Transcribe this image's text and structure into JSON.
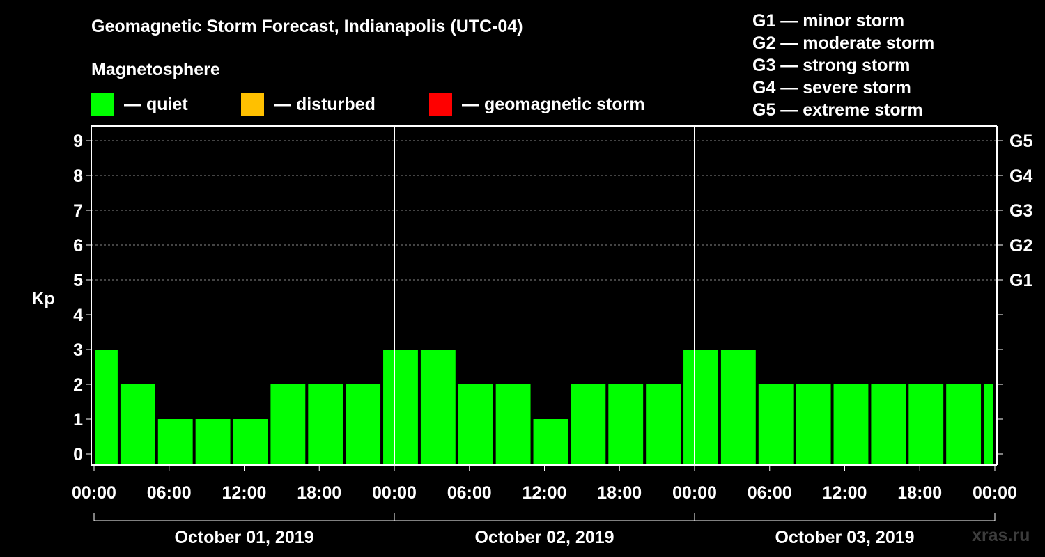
{
  "title": "Geomagnetic Storm Forecast, Indianapolis (UTC-04)",
  "magnetosphere": {
    "heading": "Magnetosphere",
    "legend": [
      {
        "label": "— quiet",
        "color": "#00ff00"
      },
      {
        "label": "— disturbed",
        "color": "#ffc000"
      },
      {
        "label": "— geomagnetic storm",
        "color": "#ff0000"
      }
    ]
  },
  "storm_scale": [
    "G1 — minor storm",
    "G2 — moderate storm",
    "G3 — strong storm",
    "G4 — severe storm",
    "G5 — extreme storm"
  ],
  "watermark": "xras.ru",
  "chart_data": {
    "type": "bar",
    "title": "Geomagnetic Storm Forecast, Indianapolis (UTC-04)",
    "ylabel": "Kp",
    "xlabel": "",
    "ylim": [
      0,
      9
    ],
    "y_ticks": [
      0,
      1,
      2,
      3,
      4,
      5,
      6,
      7,
      8,
      9
    ],
    "x_range_hours": [
      0,
      72
    ],
    "x_tick_hours": [
      0,
      6,
      12,
      18,
      24,
      30,
      36,
      42,
      48,
      54,
      60,
      66,
      72
    ],
    "x_tick_labels": [
      "00:00",
      "06:00",
      "12:00",
      "18:00",
      "00:00",
      "06:00",
      "12:00",
      "18:00",
      "00:00",
      "06:00",
      "12:00",
      "18:00",
      "00:00"
    ],
    "day_boundaries_hours": [
      24,
      48
    ],
    "days": [
      {
        "label": "October 01, 2019",
        "start_hour": 0,
        "end_hour": 24
      },
      {
        "label": "October 02, 2019",
        "start_hour": 24,
        "end_hour": 48
      },
      {
        "label": "October 03, 2019",
        "start_hour": 48,
        "end_hour": 72
      }
    ],
    "right_axis": [
      {
        "kp": 5,
        "label": "G1"
      },
      {
        "kp": 6,
        "label": "G2"
      },
      {
        "kp": 7,
        "label": "G3"
      },
      {
        "kp": 8,
        "label": "G4"
      },
      {
        "kp": 9,
        "label": "G5"
      }
    ],
    "colors": {
      "quiet": "#00ff00",
      "disturbed": "#ffc000",
      "storm": "#ff0000",
      "grid": "#888888",
      "axis": "#ffffff"
    },
    "bars": [
      {
        "start_hour": 0,
        "end_hour": 2,
        "kp": 3,
        "status": "quiet"
      },
      {
        "start_hour": 2,
        "end_hour": 5,
        "kp": 2,
        "status": "quiet"
      },
      {
        "start_hour": 5,
        "end_hour": 8,
        "kp": 1,
        "status": "quiet"
      },
      {
        "start_hour": 8,
        "end_hour": 11,
        "kp": 1,
        "status": "quiet"
      },
      {
        "start_hour": 11,
        "end_hour": 14,
        "kp": 1,
        "status": "quiet"
      },
      {
        "start_hour": 14,
        "end_hour": 17,
        "kp": 2,
        "status": "quiet"
      },
      {
        "start_hour": 17,
        "end_hour": 20,
        "kp": 2,
        "status": "quiet"
      },
      {
        "start_hour": 20,
        "end_hour": 23,
        "kp": 2,
        "status": "quiet"
      },
      {
        "start_hour": 23,
        "end_hour": 26,
        "kp": 3,
        "status": "quiet"
      },
      {
        "start_hour": 26,
        "end_hour": 29,
        "kp": 3,
        "status": "quiet"
      },
      {
        "start_hour": 29,
        "end_hour": 32,
        "kp": 2,
        "status": "quiet"
      },
      {
        "start_hour": 32,
        "end_hour": 35,
        "kp": 2,
        "status": "quiet"
      },
      {
        "start_hour": 35,
        "end_hour": 38,
        "kp": 1,
        "status": "quiet"
      },
      {
        "start_hour": 38,
        "end_hour": 41,
        "kp": 2,
        "status": "quiet"
      },
      {
        "start_hour": 41,
        "end_hour": 44,
        "kp": 2,
        "status": "quiet"
      },
      {
        "start_hour": 44,
        "end_hour": 47,
        "kp": 2,
        "status": "quiet"
      },
      {
        "start_hour": 47,
        "end_hour": 50,
        "kp": 3,
        "status": "quiet"
      },
      {
        "start_hour": 50,
        "end_hour": 53,
        "kp": 3,
        "status": "quiet"
      },
      {
        "start_hour": 53,
        "end_hour": 56,
        "kp": 2,
        "status": "quiet"
      },
      {
        "start_hour": 56,
        "end_hour": 59,
        "kp": 2,
        "status": "quiet"
      },
      {
        "start_hour": 59,
        "end_hour": 62,
        "kp": 2,
        "status": "quiet"
      },
      {
        "start_hour": 62,
        "end_hour": 65,
        "kp": 2,
        "status": "quiet"
      },
      {
        "start_hour": 65,
        "end_hour": 68,
        "kp": 2,
        "status": "quiet"
      },
      {
        "start_hour": 68,
        "end_hour": 71,
        "kp": 2,
        "status": "quiet"
      },
      {
        "start_hour": 71,
        "end_hour": 72,
        "kp": 2,
        "status": "quiet"
      }
    ]
  }
}
